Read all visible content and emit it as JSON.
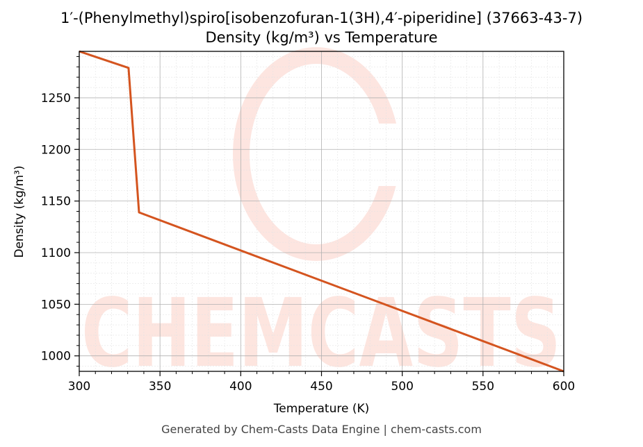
{
  "chart_data": {
    "type": "line",
    "title": "1′-(Phenylmethyl)spiro[isobenzofuran-1(3H),4′-piperidine] (37663-43-7)",
    "subtitle": "Density (kg/m³) vs Temperature",
    "xlabel": "Temperature (K)",
    "ylabel": "Density (kg/m³)",
    "xlim": [
      300,
      600
    ],
    "ylim": [
      985,
      1295
    ],
    "x_ticks": [
      300,
      350,
      400,
      450,
      500,
      550,
      600
    ],
    "y_ticks": [
      1000,
      1050,
      1100,
      1150,
      1200,
      1250
    ],
    "x_tick_labels": [
      "300",
      "350",
      "400",
      "450",
      "500",
      "550",
      "600"
    ],
    "y_tick_labels": [
      "1000",
      "1050",
      "1100",
      "1150",
      "1200",
      "1250"
    ],
    "grid": true,
    "legend": "none",
    "series": [
      {
        "color": "#d4541f",
        "x": [
          300,
          330.5,
          337,
          600
        ],
        "y": [
          1295,
          1279,
          1139,
          985
        ]
      }
    ]
  },
  "watermark": {
    "text": "CHEMCASTS",
    "color": "#fde1da"
  },
  "footer": {
    "text": "Generated by Chem-Casts Data Engine | chem-casts.com"
  }
}
